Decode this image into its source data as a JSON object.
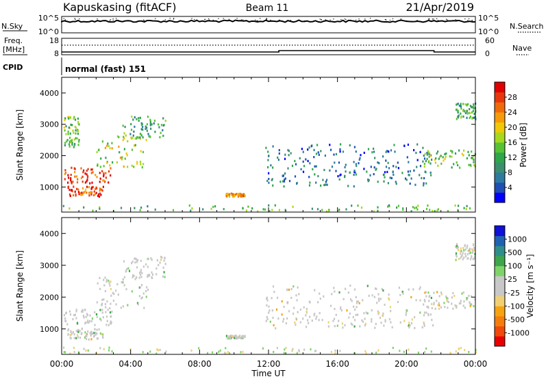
{
  "header": {
    "station": "Kapuskasing (fitACF)",
    "beam": "Beam 11",
    "date": "21/Apr/2019"
  },
  "top_panels": {
    "nsky_label": "N.Sky",
    "nsky_ticks": [
      "10^5",
      "10^0"
    ],
    "nsearch_label": "N.Search",
    "nsearch_ticks": [
      "10^5",
      "10^0"
    ],
    "freq_label_1": "Freq.",
    "freq_label_2": "[MHz]",
    "freq_ticks": [
      "18",
      "8"
    ],
    "nave_label": "Nave",
    "nave_ticks": [
      "60",
      "0"
    ],
    "cpid_label": "CPID",
    "cpid_text": "normal (fast) 151"
  },
  "chart_data": [
    {
      "type": "heatmap",
      "name": "power",
      "ylabel": "Slant Range [km]",
      "ylim": [
        200,
        4500
      ],
      "yticks": [
        "4000",
        "3000",
        "2000",
        "1000"
      ],
      "colorbar_label": "Power [dB]",
      "colorbar_ticks": [
        "28",
        "24",
        "20",
        "16",
        "12",
        "8",
        "4"
      ],
      "colorbar_colors": [
        "#0000ff",
        "#1f4fb4",
        "#2e7aa0",
        "#3b8f6e",
        "#2fa64a",
        "#57c234",
        "#a6d81e",
        "#f0c808",
        "#f79a08",
        "#f06a0a",
        "#e8360c",
        "#e00000"
      ],
      "regions": [
        {
          "t0": 0.1,
          "t1": 2.9,
          "r0": 1150,
          "r1": 1650,
          "level": 0.9
        },
        {
          "t0": 0.3,
          "t1": 2.4,
          "r0": 700,
          "r1": 1050,
          "level": 0.82
        },
        {
          "t0": 2.0,
          "t1": 5.0,
          "r0": 1650,
          "r1": 2700,
          "level": 0.55
        },
        {
          "t0": 3.5,
          "t1": 6.0,
          "r0": 2600,
          "r1": 3300,
          "level": 0.35
        },
        {
          "t0": 0.1,
          "t1": 1.0,
          "r0": 2300,
          "r1": 3300,
          "level": 0.45
        },
        {
          "t0": 9.5,
          "t1": 10.6,
          "r0": 730,
          "r1": 820,
          "level": 0.7
        },
        {
          "t0": 11.8,
          "t1": 21.5,
          "r0": 1050,
          "r1": 2400,
          "level": 0.22
        },
        {
          "t0": 21.0,
          "t1": 24.0,
          "r0": 1650,
          "r1": 2200,
          "level": 0.45
        },
        {
          "t0": 22.8,
          "t1": 24.0,
          "r0": 3200,
          "r1": 3700,
          "level": 0.35
        },
        {
          "t0": 0.0,
          "t1": 24.0,
          "r0": 250,
          "r1": 450,
          "level": 0.4
        }
      ]
    },
    {
      "type": "heatmap",
      "name": "velocity",
      "ylabel": "Slant Range [km]",
      "ylim": [
        200,
        4500
      ],
      "yticks": [
        "4000",
        "3000",
        "2000",
        "1000"
      ],
      "colorbar_label": "Velocity [m s⁻¹]",
      "colorbar_ticks": [
        "1000",
        "500",
        "100",
        "25",
        "-25",
        "-100",
        "-500",
        "-1000"
      ],
      "colorbar_colors": [
        "#e80000",
        "#f04a0a",
        "#f57d0c",
        "#f7a310",
        "#f0d072",
        "#c8c8c8",
        "#c8c8c8",
        "#7ed468",
        "#3ea64a",
        "#2e8f8a",
        "#1f62b4",
        "#1010d8"
      ],
      "regions": [
        {
          "t0": 0.1,
          "t1": 2.9,
          "r0": 1150,
          "r1": 1650,
          "level": 0.5
        },
        {
          "t0": 0.3,
          "t1": 2.4,
          "r0": 700,
          "r1": 1050,
          "level": 0.5
        },
        {
          "t0": 2.0,
          "t1": 5.0,
          "r0": 1650,
          "r1": 2700,
          "level": 0.5
        },
        {
          "t0": 3.5,
          "t1": 6.0,
          "r0": 2600,
          "r1": 3300,
          "level": 0.5
        },
        {
          "t0": 9.5,
          "t1": 10.6,
          "r0": 730,
          "r1": 820,
          "level": 0.5
        },
        {
          "t0": 11.8,
          "t1": 21.5,
          "r0": 1050,
          "r1": 2400,
          "level": 0.5
        },
        {
          "t0": 21.0,
          "t1": 24.0,
          "r0": 1650,
          "r1": 2200,
          "level": 0.5
        },
        {
          "t0": 22.8,
          "t1": 24.0,
          "r0": 3200,
          "r1": 3700,
          "level": 0.5
        },
        {
          "t0": 0.0,
          "t1": 24.0,
          "r0": 250,
          "r1": 450,
          "level": 0.3
        }
      ]
    }
  ],
  "x_axis": {
    "ticks": [
      "00:00",
      "04:00",
      "08:00",
      "12:00",
      "16:00",
      "20:00",
      "00:00"
    ],
    "label": "Time UT",
    "xlim_hours": [
      0,
      24
    ]
  }
}
